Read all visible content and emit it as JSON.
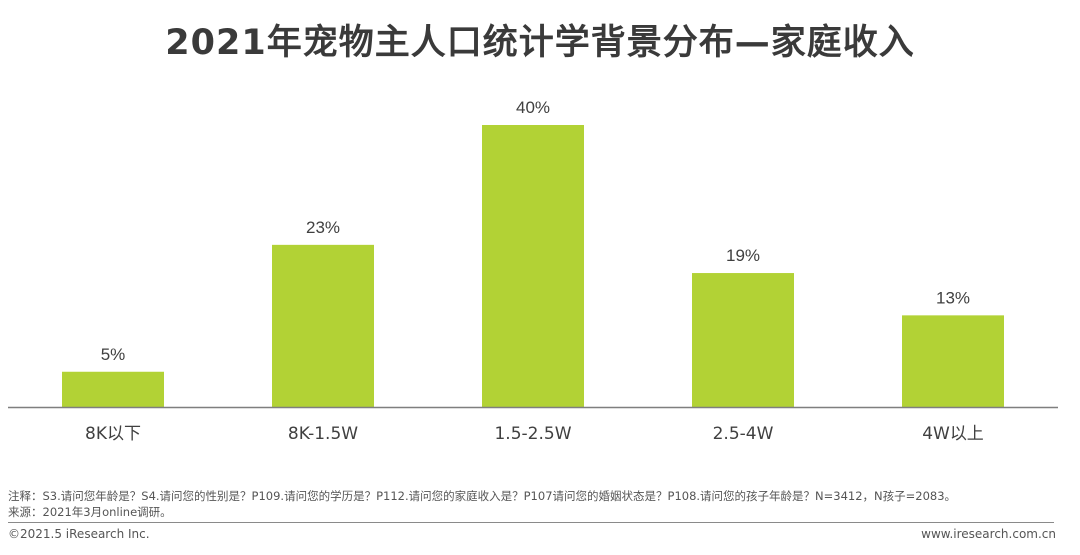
{
  "title": "2021年宠物主人口统计学背景分布—家庭收入",
  "chart_data": {
    "type": "bar",
    "title": "2021年宠物主人口统计学背景分布—家庭收入",
    "categories": [
      "8K以下",
      "8K-1.5W",
      "1.5-2.5W",
      "2.5-4W",
      "4W以上"
    ],
    "values": [
      5,
      23,
      40,
      19,
      13
    ],
    "value_labels": [
      "5%",
      "23%",
      "40%",
      "19%",
      "13%"
    ],
    "ylim": [
      0,
      45
    ],
    "grid": false,
    "bar_color": "#b2d235",
    "axis_color": "#7f7f7f"
  },
  "notes": {
    "line1": "注释：S3.请问您年龄是？S4.请问您的性别是？P109.请问您的学历是？P112.请问您的家庭收入是？P107请问您的婚姻状态是？P108.请问您的孩子年龄是？N=3412，N孩子=2083。",
    "line2": "来源：2021年3月online调研。"
  },
  "footer": {
    "copyright": "©2021.5 iResearch Inc.",
    "website": "www.iresearch.com.cn"
  }
}
